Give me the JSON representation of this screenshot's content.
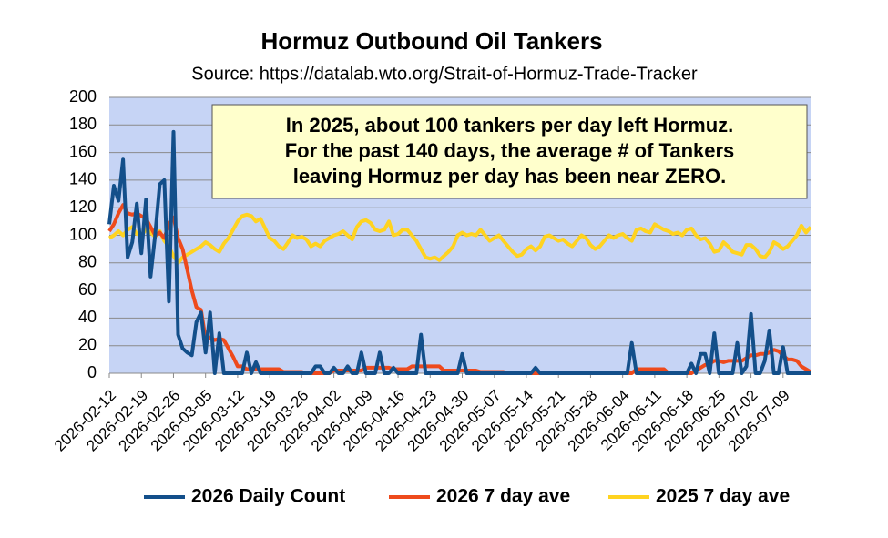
{
  "chart_data": {
    "type": "line",
    "title": "Hormuz Outbound Oil Tankers",
    "subtitle": "Source: https://datalab.wto.org/Strait-of-Hormuz-Trade-Tracker",
    "annotation": [
      "In 2025, about 100 tankers per day left Hormuz.",
      "For the past 140 days, the average # of Tankers",
      "leaving Hormuz per day has been near ZERO."
    ],
    "categories": [
      "2026-02-12",
      null,
      null,
      null,
      null,
      null,
      null,
      "2026-02-19",
      null,
      null,
      null,
      null,
      null,
      null,
      "2026-02-26",
      null,
      null,
      null,
      null,
      null,
      null,
      "2026-03-05",
      null,
      null,
      null,
      null,
      null,
      null,
      "2026-03-12",
      null,
      null,
      null,
      null,
      null,
      null,
      "2026-03-19",
      null,
      null,
      null,
      null,
      null,
      null,
      "2026-03-26",
      null,
      null,
      null,
      null,
      null,
      null,
      "2026-04-02",
      null,
      null,
      null,
      null,
      null,
      null,
      "2026-04-09",
      null,
      null,
      null,
      null,
      null,
      null,
      "2026-04-16",
      null,
      null,
      null,
      null,
      null,
      null,
      "2026-04-23",
      null,
      null,
      null,
      null,
      null,
      null,
      "2026-04-30",
      null,
      null,
      null,
      null,
      null,
      null,
      "2026-05-07",
      null,
      null,
      null,
      null,
      null,
      null,
      "2026-05-14",
      null,
      null,
      null,
      null,
      null,
      null,
      "2026-05-21",
      null,
      null,
      null,
      null,
      null,
      null,
      "2026-05-28",
      null,
      null,
      null,
      null,
      null,
      null,
      "2026-06-04",
      null,
      null,
      null,
      null,
      null,
      null,
      "2026-06-11",
      null,
      null,
      null,
      null,
      null,
      null,
      "2026-06-18",
      null,
      null,
      null,
      null,
      null,
      null,
      "2026-06-25",
      null,
      null,
      null,
      null,
      null,
      null,
      "2026-07-02",
      null,
      null,
      null,
      null,
      null,
      null,
      "2026-07-09",
      null,
      null,
      null,
      null,
      null,
      null
    ],
    "series": [
      {
        "name": "2026 Daily Count",
        "color": "#134f8a",
        "values": [
          108,
          136,
          125,
          155,
          84,
          95,
          123,
          87,
          126,
          70,
          100,
          137,
          140,
          52,
          175,
          28,
          18,
          15,
          13,
          37,
          44,
          15,
          44,
          0,
          29,
          0,
          0,
          0,
          0,
          0,
          15,
          0,
          8,
          0,
          0,
          0,
          0,
          0,
          0,
          0,
          0,
          0,
          0,
          0,
          0,
          5,
          5,
          0,
          0,
          4,
          0,
          0,
          5,
          0,
          0,
          15,
          0,
          0,
          0,
          15,
          0,
          0,
          4,
          0,
          0,
          0,
          0,
          0,
          28,
          0,
          0,
          0,
          0,
          0,
          0,
          0,
          0,
          14,
          0,
          0,
          0,
          0,
          0,
          0,
          0,
          0,
          0,
          0,
          0,
          0,
          0,
          0,
          0,
          4,
          0,
          0,
          0,
          0,
          0,
          0,
          0,
          0,
          0,
          0,
          0,
          0,
          0,
          0,
          0,
          0,
          0,
          0,
          0,
          0,
          22,
          0,
          0,
          0,
          0,
          0,
          0,
          0,
          0,
          0,
          0,
          0,
          0,
          7,
          0,
          14,
          14,
          0,
          29,
          0,
          0,
          0,
          0,
          22,
          0,
          5,
          43,
          0,
          0,
          9,
          31,
          0,
          0,
          19,
          0,
          0,
          0,
          0,
          0,
          0
        ]
      },
      {
        "name": "2026 7 day ave",
        "color": "#ee4a1c",
        "values": [
          103,
          108,
          116,
          122,
          116,
          115,
          116,
          114,
          112,
          106,
          100,
          102,
          98,
          108,
          113,
          98,
          90,
          75,
          60,
          48,
          46,
          25,
          26,
          24,
          25,
          24,
          18,
          12,
          5,
          5,
          3,
          3,
          3,
          3,
          3,
          3,
          3,
          3,
          1,
          1,
          1,
          1,
          1,
          0,
          0,
          0,
          0,
          0,
          0,
          2,
          2,
          2,
          2,
          2,
          2,
          2,
          4,
          4,
          4,
          4,
          4,
          4,
          3,
          3,
          3,
          3,
          5,
          5,
          5,
          5,
          5,
          5,
          5,
          2,
          2,
          2,
          2,
          2,
          2,
          2,
          2,
          1,
          1,
          1,
          1,
          1,
          1,
          0,
          0,
          0,
          0,
          0,
          0,
          0,
          0,
          0,
          0,
          0,
          0,
          0,
          0,
          0,
          0,
          0,
          0,
          0,
          0,
          0,
          0,
          0,
          0,
          0,
          0,
          0,
          0,
          3,
          3,
          3,
          3,
          3,
          3,
          3,
          0,
          0,
          0,
          0,
          0,
          0,
          2,
          4,
          6,
          7,
          9,
          9,
          8,
          9,
          9,
          9,
          9,
          11,
          13,
          13,
          14,
          14,
          15,
          17,
          16,
          13,
          10,
          10,
          9,
          5,
          3,
          1
        ]
      },
      {
        "name": "2025 7 day ave",
        "color": "#ffd320",
        "values": [
          98,
          100,
          103,
          100,
          104,
          106,
          101,
          100,
          104,
          102,
          99,
          103,
          96,
          92,
          85,
          80,
          84,
          86,
          88,
          90,
          92,
          95,
          93,
          90,
          88,
          94,
          98,
          104,
          110,
          114,
          115,
          114,
          110,
          112,
          105,
          98,
          96,
          92,
          90,
          95,
          100,
          98,
          99,
          97,
          92,
          94,
          92,
          96,
          98,
          100,
          101,
          103,
          100,
          97,
          106,
          110,
          111,
          109,
          104,
          103,
          104,
          110,
          100,
          101,
          104,
          104,
          100,
          96,
          90,
          84,
          83,
          84,
          82,
          85,
          88,
          92,
          100,
          102,
          100,
          101,
          100,
          104,
          100,
          96,
          98,
          100,
          96,
          92,
          88,
          85,
          86,
          90,
          92,
          89,
          92,
          99,
          100,
          98,
          96,
          97,
          94,
          92,
          96,
          100,
          98,
          93,
          90,
          92,
          96,
          100,
          98,
          100,
          101,
          98,
          96,
          104,
          105,
          103,
          102,
          108,
          106,
          104,
          103,
          101,
          102,
          100,
          104,
          105,
          100,
          97,
          98,
          94,
          88,
          89,
          95,
          92,
          88,
          87,
          86,
          93,
          93,
          90,
          85,
          84,
          88,
          95,
          93,
          90,
          92,
          96,
          100,
          107,
          102,
          106
        ]
      }
    ],
    "ylim": [
      0,
      200
    ],
    "yticks": [
      0,
      20,
      40,
      60,
      80,
      100,
      120,
      140,
      160,
      180,
      200
    ],
    "grid": true,
    "legend": "bottom",
    "plot_background": "#c6d4f5"
  }
}
